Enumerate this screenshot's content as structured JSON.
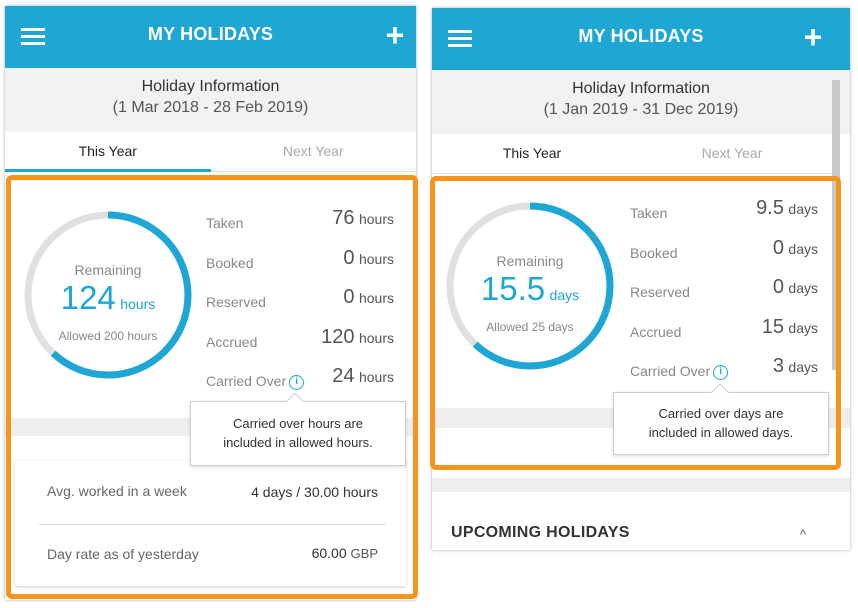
{
  "left": {
    "appbar": {
      "title": "MY HOLIDAYS",
      "menu_icon": "hamburger-menu-icon",
      "add_icon": "plus-icon",
      "add_glyph": "+"
    },
    "info": {
      "line1": "Holiday Information",
      "line2": "(1 Mar 2018 - 28 Feb 2019)"
    },
    "tabs": [
      {
        "label": "This Year",
        "active": true
      },
      {
        "label": "Next Year",
        "active": false
      }
    ],
    "ring": {
      "label": "Remaining",
      "value": "124",
      "unit": "hours",
      "allowed": "Allowed 200 hours",
      "remaining_fraction": 0.62
    },
    "stats": [
      {
        "label": "Taken",
        "value": "76",
        "unit": "hours"
      },
      {
        "label": "Booked",
        "value": "0",
        "unit": "hours"
      },
      {
        "label": "Reserved",
        "value": "0",
        "unit": "hours"
      },
      {
        "label": "Accrued",
        "value": "120",
        "unit": "hours"
      },
      {
        "label": "Carried Over",
        "value": "24",
        "unit": "hours"
      }
    ],
    "tooltip": {
      "line1": "Carried over hours are",
      "line2": "included in allowed hours."
    },
    "rows": [
      {
        "label": "Avg. worked in a week",
        "value": "4 days / 30.00 hours",
        "unit": ""
      },
      {
        "label": "Day rate as of yesterday",
        "value": "60.00",
        "unit": "GBP"
      }
    ]
  },
  "right": {
    "appbar": {
      "title": "MY HOLIDAYS",
      "menu_icon": "hamburger-menu-icon",
      "add_icon": "plus-icon",
      "add_glyph": "+"
    },
    "info": {
      "line1": "Holiday Information",
      "line2": "(1 Jan 2019 - 31 Dec 2019)"
    },
    "tabs": [
      {
        "label": "This Year",
        "active": true
      },
      {
        "label": "Next Year",
        "active": false
      }
    ],
    "ring": {
      "label": "Remaining",
      "value": "15.5",
      "unit": "days",
      "allowed": "Allowed 25 days",
      "remaining_fraction": 0.62
    },
    "stats": [
      {
        "label": "Taken",
        "value": "9.5",
        "unit": "days"
      },
      {
        "label": "Booked",
        "value": "0",
        "unit": "days"
      },
      {
        "label": "Reserved",
        "value": "0",
        "unit": "days"
      },
      {
        "label": "Accrued",
        "value": "15",
        "unit": "days"
      },
      {
        "label": "Carried Over",
        "value": "3",
        "unit": "days"
      }
    ],
    "tooltip": {
      "line1": "Carried over days are",
      "line2": "included in allowed days."
    },
    "upcoming": {
      "title": "UPCOMING HOLIDAYS",
      "caret": "^",
      "caret_icon": "chevron-up-icon"
    }
  },
  "colors": {
    "accent": "#1ea6d4",
    "highlight": "#f7941d",
    "ring_track": "#e0e0e0"
  }
}
